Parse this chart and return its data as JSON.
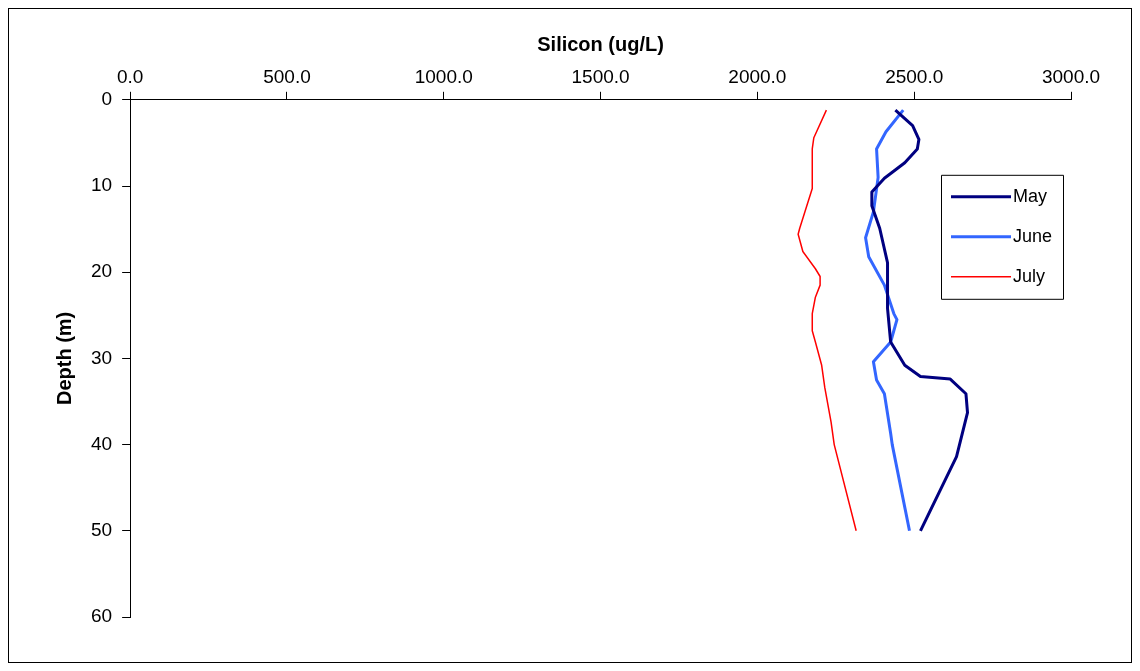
{
  "chart_data": {
    "type": "line",
    "xlabel": "Silicon (ug/L)",
    "ylabel": "Depth (m)",
    "xlim": [
      0,
      3000
    ],
    "xticks": [
      {
        "value": 0,
        "label": "0.0"
      },
      {
        "value": 500,
        "label": "500.0"
      },
      {
        "value": 1000,
        "label": "1000.0"
      },
      {
        "value": 1500,
        "label": "1500.0"
      },
      {
        "value": 2000,
        "label": "2000.0"
      },
      {
        "value": 2500,
        "label": "2500.0"
      },
      {
        "value": 3000,
        "label": "3000.0"
      }
    ],
    "ylim": [
      60,
      0
    ],
    "yticks": [
      0,
      10,
      20,
      30,
      40,
      50,
      60
    ],
    "grid": false,
    "legend": "right",
    "marker": "none",
    "series": [
      {
        "name": "May",
        "color": "#000080",
        "x": [
          2440,
          2495,
          2515,
          2510,
          2470,
          2405,
          2365,
          2365,
          2390,
          2415,
          2415,
          2425,
          2470,
          2520,
          2615,
          2665,
          2670,
          2635,
          2520
        ],
        "values": [
          1.2,
          3,
          4.6,
          5.7,
          7.3,
          9.1,
          10.7,
          12.3,
          14.9,
          18.9,
          24.2,
          28.1,
          30.8,
          32.1,
          32.4,
          34.1,
          36.3,
          41.4,
          50
        ]
      },
      {
        "name": "June",
        "color": "#3366ff",
        "x": [
          2465,
          2410,
          2380,
          2385,
          2370,
          2345,
          2355,
          2405,
          2435,
          2445,
          2425,
          2370,
          2380,
          2405,
          2425,
          2430,
          2485
        ],
        "values": [
          1.2,
          3.7,
          5.7,
          9,
          13,
          16,
          18.2,
          21.5,
          24.8,
          25.5,
          28.1,
          30.4,
          32.5,
          34.1,
          38.7,
          40,
          50
        ]
      },
      {
        "name": "July",
        "color": "#ff0000",
        "x": [
          2220,
          2180,
          2175,
          2175,
          2135,
          2130,
          2145,
          2185,
          2200,
          2200,
          2185,
          2175,
          2175,
          2185,
          2205,
          2215,
          2235,
          2245,
          2315
        ],
        "values": [
          1.2,
          4.4,
          5.7,
          10.3,
          14.9,
          15.6,
          17.6,
          19.6,
          20.5,
          21.5,
          22.9,
          24.8,
          26.8,
          28.1,
          30.8,
          33.4,
          37.4,
          40,
          50
        ]
      }
    ]
  }
}
